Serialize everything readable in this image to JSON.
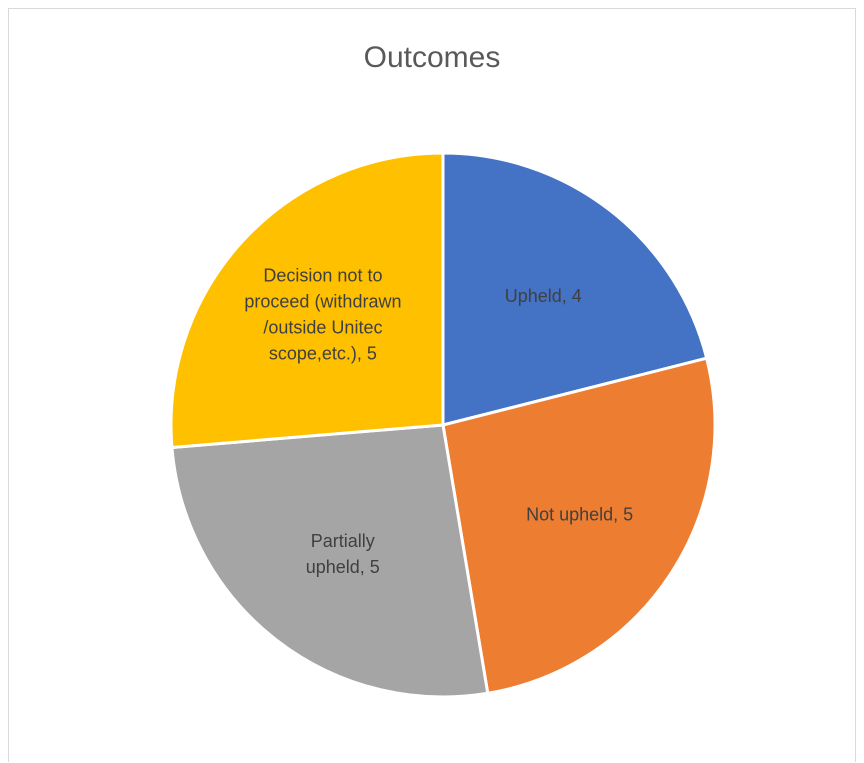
{
  "chart_data": {
    "type": "pie",
    "title": "Outcomes",
    "slices": [
      {
        "label": "Upheld",
        "value": 4,
        "color": "#4472C4",
        "label_lines": [
          "Upheld, 4"
        ]
      },
      {
        "label": "Not upheld",
        "value": 5,
        "color": "#ED7D31",
        "label_lines": [
          "Not upheld, 5"
        ]
      },
      {
        "label": "Partially upheld",
        "value": 5,
        "color": "#A5A5A5",
        "label_lines": [
          "Partially",
          "upheld, 5"
        ]
      },
      {
        "label": "Decision not to proceed (withdrawn /outside Unitec scope,etc.)",
        "value": 5,
        "color": "#FFC000",
        "label_lines": [
          "Decision not to",
          "proceed (withdrawn",
          "/outside Unitec",
          "scope,etc.), 5"
        ]
      }
    ],
    "legend": "none"
  }
}
